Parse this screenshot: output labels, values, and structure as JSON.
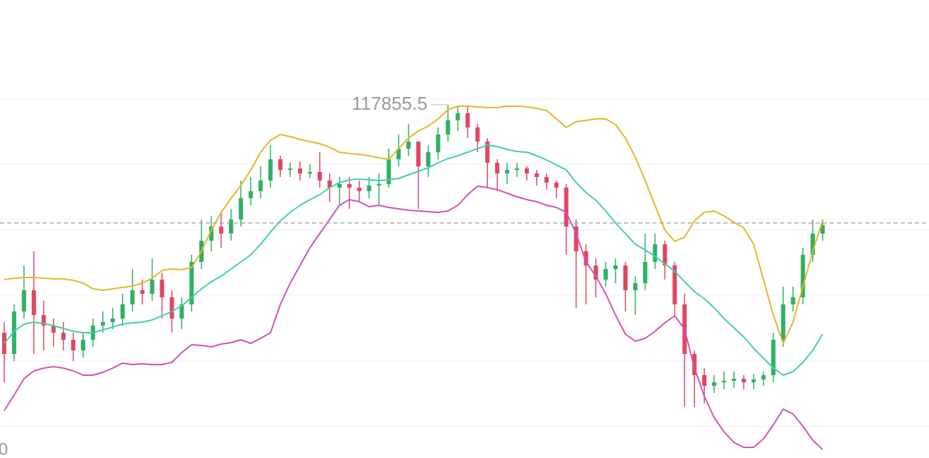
{
  "chart_data": {
    "type": "candlestick",
    "up_color": "#2fb063",
    "down_color": "#e04660",
    "ylim": [
      112865.5,
      119335.5
    ],
    "grid_lines": [
      117935.5,
      117015.5,
      116085.5,
      115165.5,
      114235.5,
      113315.5
    ],
    "price_line": 116185.5,
    "annotations": [
      "0"
    ],
    "open": [
      114635.5,
      114335.5,
      114935.5,
      115235.5,
      114885.5,
      114735.5,
      114635.5,
      114535.5,
      114385.5,
      114535.5,
      114735.5,
      114785.5,
      114835.5,
      115035.5,
      115235.5,
      115185.5,
      115385.5,
      115135.5,
      114835.5,
      115035.5,
      115635.5,
      115935.5,
      116135.5,
      116035.5,
      116235.5,
      116535.5,
      116635.5,
      116785.5,
      117085.5,
      116935.5,
      116955.5,
      116885.5,
      116905.5,
      116785.5,
      116685.5,
      116735.5,
      116685.5,
      116635.5,
      116715.5,
      116735.5,
      117085.5,
      117235.5,
      117335.5,
      116985.5,
      117185.5,
      117435.5,
      117635.5,
      117735.5,
      117535.5,
      117335.5,
      117035.5,
      116885.5,
      116935.5,
      116955.5,
      116885.5,
      116835.5,
      116755.5,
      116685.5,
      116135.5,
      115785.5,
      115585.5,
      115385.5,
      115535.5,
      115585.5,
      115235.5,
      115335.5,
      115635.5,
      115885.5,
      115585.5,
      115035.5,
      114335.5,
      114035.5,
      113885.5,
      113935.5,
      113955.5,
      113985.5,
      113935.5,
      113975.5,
      114035.5,
      114535.5,
      115035.5,
      115135.5,
      115735.5,
      116035.5
    ],
    "high": [
      114785.5,
      115035.5,
      115585.5,
      115785.5,
      115085.5,
      114835.5,
      114785.5,
      114635.5,
      114635.5,
      114835.5,
      114935.5,
      114985.5,
      115185.5,
      115535.5,
      115385.5,
      115685.5,
      115485.5,
      115235.5,
      115135.5,
      115735.5,
      116235.5,
      116285.5,
      116335.5,
      116385.5,
      116785.5,
      116835.5,
      116985.5,
      117285.5,
      117135.5,
      117035.5,
      117055.5,
      117015.5,
      117185.5,
      116885.5,
      116835.5,
      116835.5,
      116785.5,
      116835.5,
      116885.5,
      117235.5,
      117435.5,
      117585.5,
      117335.5,
      117285.5,
      117535.5,
      117855.5,
      117835.5,
      117835.5,
      117585.5,
      117385.5,
      117085.5,
      117035.5,
      117035.5,
      116985.5,
      116935.5,
      116885.5,
      116785.5,
      116735.5,
      116235.5,
      115885.5,
      115685.5,
      115635.5,
      115685.5,
      115635.5,
      115435.5,
      116035.5,
      116035.5,
      115935.5,
      115635.5,
      115185.5,
      114385.5,
      114135.5,
      114035.5,
      114085.5,
      114085.5,
      114035.5,
      114055.5,
      114085.5,
      114635.5,
      115285.5,
      115285.5,
      115835.5,
      116235.5,
      116235.5
    ],
    "low": [
      113935.5,
      114235.5,
      114835.5,
      114335.5,
      114385.5,
      114435.5,
      114385.5,
      114235.5,
      114285.5,
      114435.5,
      114635.5,
      114685.5,
      114735.5,
      114935.5,
      115035.5,
      115085.5,
      114835.5,
      114635.5,
      114685.5,
      114935.5,
      115535.5,
      115785.5,
      115835.5,
      115935.5,
      116135.5,
      116435.5,
      116535.5,
      116685.5,
      116835.5,
      116835.5,
      116785.5,
      116815.5,
      116685.5,
      116485.5,
      116435.5,
      116385.5,
      116485.5,
      116535.5,
      116435.5,
      116685.5,
      116985.5,
      117135.5,
      116385.5,
      116835.5,
      117085.5,
      117335.5,
      117485.5,
      117385.5,
      117185.5,
      116685.5,
      116635.5,
      116735.5,
      116835.5,
      116785.5,
      116715.5,
      116655.5,
      116535.5,
      115735.5,
      114985.5,
      115035.5,
      115135.5,
      115285.5,
      115335.5,
      114935.5,
      114885.5,
      115235.5,
      115535.5,
      115385.5,
      114885.5,
      113585.5,
      113585.5,
      113635.5,
      113785.5,
      113835.5,
      113855.5,
      113835.5,
      113835.5,
      113885.5,
      113935.5,
      114435.5,
      114935.5,
      115035.5,
      115635.5,
      115935.5
    ],
    "close": [
      114335.5,
      114935.5,
      115235.5,
      114885.5,
      114735.5,
      114635.5,
      114535.5,
      114385.5,
      114535.5,
      114735.5,
      114785.5,
      114835.5,
      115035.5,
      115235.5,
      115185.5,
      115385.5,
      115135.5,
      114835.5,
      115035.5,
      115635.5,
      115935.5,
      116135.5,
      116035.5,
      116235.5,
      116535.5,
      116635.5,
      116785.5,
      117085.5,
      116935.5,
      116955.5,
      116885.5,
      116905.5,
      116785.5,
      116685.5,
      116735.5,
      116685.5,
      116635.5,
      116715.5,
      116735.5,
      117085.5,
      117235.5,
      117335.5,
      116985.5,
      117185.5,
      117435.5,
      117635.5,
      117735.5,
      117535.5,
      117335.5,
      117035.5,
      116885.5,
      116935.5,
      116955.5,
      116885.5,
      116835.5,
      116755.5,
      116685.5,
      116135.5,
      115785.5,
      115585.5,
      115385.5,
      115535.5,
      115585.5,
      115235.5,
      115335.5,
      115635.5,
      115885.5,
      115585.5,
      115035.5,
      114335.5,
      114035.5,
      113885.5,
      113935.5,
      113955.5,
      113985.5,
      113935.5,
      113975.5,
      114035.5,
      114535.5,
      115035.5,
      115135.5,
      115735.5,
      116035.5,
      116155.5
    ],
    "series": [
      {
        "color": "#e3b729",
        "values": [
          115385.5,
          115405.5,
          115415.5,
          115415.5,
          115405.5,
          115395.5,
          115395.5,
          115375.5,
          115335.5,
          115255.5,
          115235.5,
          115255.5,
          115275.5,
          115295.5,
          115335.5,
          115405.5,
          115515.5,
          115535.5,
          115525.5,
          115555.5,
          115785.5,
          116085.5,
          116335.5,
          116535.5,
          116715.5,
          116935.5,
          117185.5,
          117355.5,
          117435.5,
          117405.5,
          117365.5,
          117335.5,
          117305.5,
          117255.5,
          117185.5,
          117165.5,
          117155.5,
          117135.5,
          117105.5,
          117085.5,
          117235.5,
          117385.5,
          117485.5,
          117555.5,
          117655.5,
          117785.5,
          117835.5,
          117835.5,
          117825.5,
          117815.5,
          117815.5,
          117835.5,
          117835.5,
          117825.5,
          117805.5,
          117775.5,
          117655.5,
          117535.5,
          117615.5,
          117635.5,
          117655.5,
          117655.5,
          117575.5,
          117385.5,
          117115.5,
          116785.5,
          116435.5,
          116085.5,
          115925.5,
          115985.5,
          116215.5,
          116335.5,
          116355.5,
          116285.5,
          116195.5,
          116115.5,
          115885.5,
          115385.5,
          114885.5,
          114485.5,
          114785.5,
          115285.5,
          115785.5,
          116215.5
        ]
      },
      {
        "color": "#3fcfae",
        "values": [
          114485.5,
          114655.5,
          114755.5,
          114785.5,
          114765.5,
          114735.5,
          114695.5,
          114655.5,
          114635.5,
          114635.5,
          114675.5,
          114715.5,
          114755.5,
          114775.5,
          114785.5,
          114815.5,
          114875.5,
          114935.5,
          115015.5,
          115135.5,
          115255.5,
          115355.5,
          115435.5,
          115535.5,
          115635.5,
          115735.5,
          115885.5,
          116055.5,
          116215.5,
          116335.5,
          116435.5,
          116515.5,
          116585.5,
          116685.5,
          116755.5,
          116795.5,
          116805.5,
          116795.5,
          116785.5,
          116795.5,
          116815.5,
          116865.5,
          116915.5,
          116965.5,
          117035.5,
          117095.5,
          117135.5,
          117185.5,
          117235.5,
          117285.5,
          117265.5,
          117225.5,
          117195.5,
          117185.5,
          117135.5,
          117075.5,
          117005.5,
          116935.5,
          116755.5,
          116615.5,
          116505.5,
          116355.5,
          116185.5,
          116035.5,
          115885.5,
          115805.5,
          115715.5,
          115605.5,
          115505.5,
          115355.5,
          115215.5,
          115115.5,
          114985.5,
          114835.5,
          114705.5,
          114575.5,
          114415.5,
          114275.5,
          114135.5,
          114035.5,
          114085.5,
          114215.5,
          114385.5,
          114615.5
        ]
      },
      {
        "color": "#d451b3",
        "values": [
          113535.5,
          113755.5,
          113985.5,
          114095.5,
          114135.5,
          114155.5,
          114135.5,
          114095.5,
          114035.5,
          114035.5,
          114075.5,
          114135.5,
          114205.5,
          114185.5,
          114195.5,
          114185.5,
          114185.5,
          114215.5,
          114355.5,
          114465.5,
          114455.5,
          114435.5,
          114475.5,
          114495.5,
          114535.5,
          114485.5,
          114555.5,
          114635.5,
          115035.5,
          115335.5,
          115585.5,
          115835.5,
          116035.5,
          116235.5,
          116435.5,
          116515.5,
          116485.5,
          116415.5,
          116435.5,
          116405.5,
          116385.5,
          116365.5,
          116355.5,
          116345.5,
          116335.5,
          116355.5,
          116435.5,
          116585.5,
          116705.5,
          116685.5,
          116655.5,
          116605.5,
          116555.5,
          116515.5,
          116485.5,
          116435.5,
          116405.5,
          116335.5,
          116035.5,
          115635.5,
          115435.5,
          115185.5,
          114885.5,
          114615.5,
          114515.5,
          114555.5,
          114655.5,
          114775.5,
          114875.5,
          114685.5,
          114135.5,
          113735.5,
          113435.5,
          113235.5,
          113085.5,
          113015.5,
          113015.5,
          113135.5,
          113335.5,
          113555.5,
          113485.5,
          113315.5,
          113115.5,
          112985.5
        ]
      }
    ]
  }
}
